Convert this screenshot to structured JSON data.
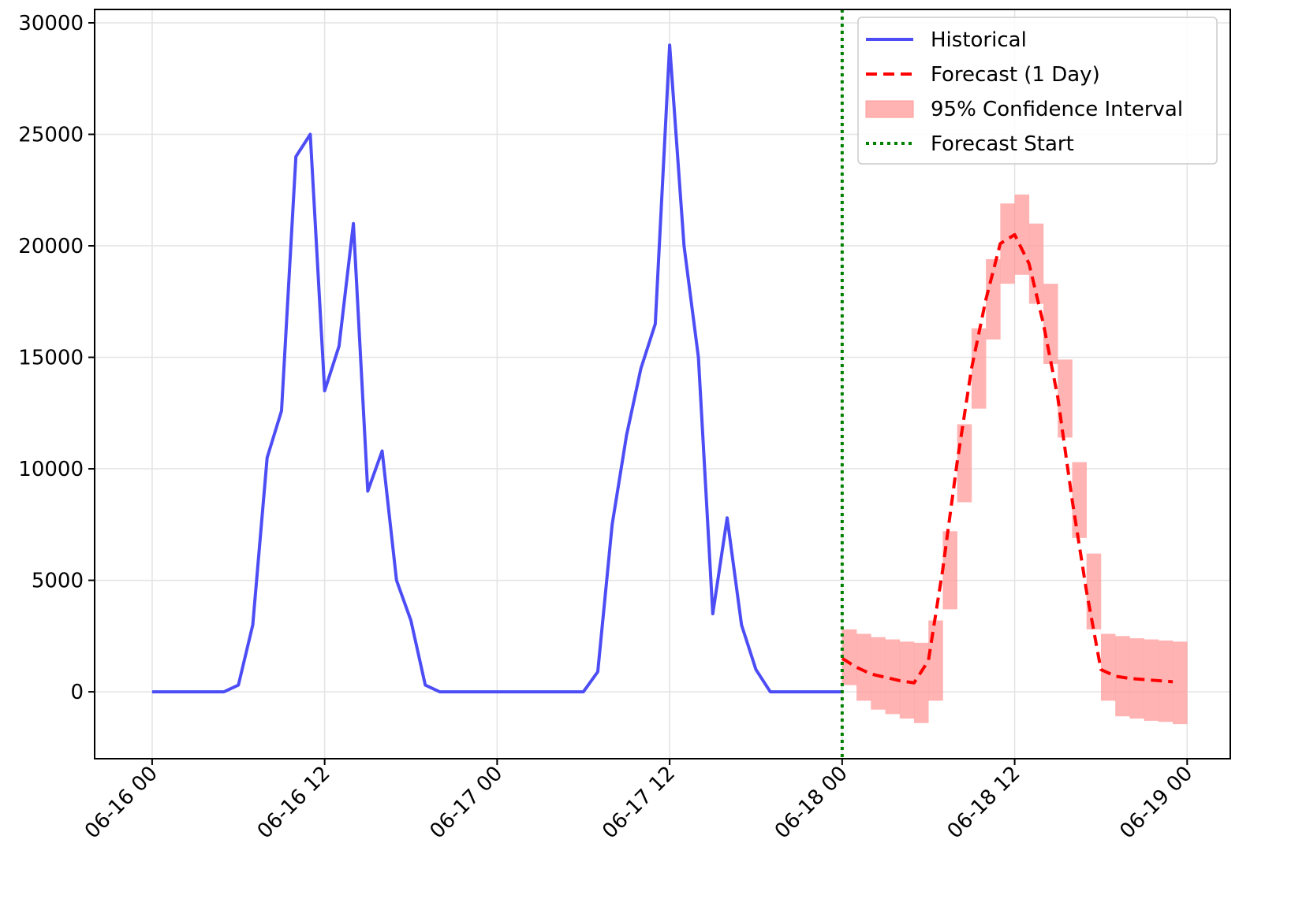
{
  "chart_data": {
    "type": "line",
    "xlim": [
      "06-15 20",
      "06-19 03"
    ],
    "xticks": [
      "06-16 00",
      "06-16 12",
      "06-17 00",
      "06-17 12",
      "06-18 00",
      "06-18 12",
      "06-19 00"
    ],
    "ylim": [
      -3000,
      30600
    ],
    "yticks": [
      0,
      5000,
      10000,
      15000,
      20000,
      25000,
      30000
    ],
    "grid": true,
    "legend": "upper right",
    "series": [
      {
        "name": "Historical",
        "color": "#4d4df5",
        "style": "solid",
        "x": [
          "06-16 00",
          "06-16 01",
          "06-16 02",
          "06-16 03",
          "06-16 04",
          "06-16 05",
          "06-16 06",
          "06-16 07",
          "06-16 08",
          "06-16 09",
          "06-16 10",
          "06-16 11",
          "06-16 12",
          "06-16 13",
          "06-16 14",
          "06-16 15",
          "06-16 16",
          "06-16 17",
          "06-16 18",
          "06-16 19",
          "06-16 20",
          "06-16 21",
          "06-16 22",
          "06-16 23",
          "06-17 00",
          "06-17 01",
          "06-17 02",
          "06-17 03",
          "06-17 04",
          "06-17 05",
          "06-17 06",
          "06-17 07",
          "06-17 08",
          "06-17 09",
          "06-17 10",
          "06-17 11",
          "06-17 12",
          "06-17 13",
          "06-17 14",
          "06-17 15",
          "06-17 16",
          "06-17 17",
          "06-17 18",
          "06-17 19",
          "06-17 20",
          "06-17 21",
          "06-17 22",
          "06-17 23",
          "06-18 00"
        ],
        "values": [
          0,
          0,
          0,
          0,
          0,
          0,
          300,
          3000,
          10500,
          12600,
          24000,
          25000,
          13500,
          15500,
          21000,
          9000,
          10800,
          5000,
          3200,
          300,
          0,
          0,
          0,
          0,
          0,
          0,
          0,
          0,
          0,
          0,
          0,
          900,
          7500,
          11500,
          14500,
          16500,
          29000,
          20000,
          15000,
          3500,
          7800,
          3000,
          1000,
          0,
          0,
          0,
          0,
          0,
          0
        ]
      },
      {
        "name": "Forecast (1 Day)",
        "color": "#ff0000",
        "style": "dashed",
        "x": [
          "06-18 00",
          "06-18 01",
          "06-18 02",
          "06-18 03",
          "06-18 04",
          "06-18 05",
          "06-18 06",
          "06-18 07",
          "06-18 08",
          "06-18 09",
          "06-18 10",
          "06-18 11",
          "06-18 12",
          "06-18 13",
          "06-18 14",
          "06-18 15",
          "06-18 16",
          "06-18 17",
          "06-18 18",
          "06-18 19",
          "06-18 20",
          "06-18 21",
          "06-18 22",
          "06-18 23"
        ],
        "values": [
          1500,
          1100,
          800,
          650,
          500,
          400,
          1400,
          5500,
          10300,
          14500,
          17600,
          20100,
          20500,
          19200,
          16500,
          13200,
          8600,
          4500,
          1000,
          700,
          600,
          550,
          500,
          450
        ]
      },
      {
        "name": "95% Confidence Interval",
        "color": "#ff9999",
        "style": "band",
        "x": [
          "06-18 00",
          "06-18 01",
          "06-18 02",
          "06-18 03",
          "06-18 04",
          "06-18 05",
          "06-18 06",
          "06-18 07",
          "06-18 08",
          "06-18 09",
          "06-18 10",
          "06-18 11",
          "06-18 12",
          "06-18 13",
          "06-18 14",
          "06-18 15",
          "06-18 16",
          "06-18 17",
          "06-18 18",
          "06-18 19",
          "06-18 20",
          "06-18 21",
          "06-18 22",
          "06-18 23"
        ],
        "lower": [
          300,
          -400,
          -800,
          -1000,
          -1200,
          -1400,
          -400,
          3700,
          8500,
          12700,
          15800,
          18300,
          18700,
          17400,
          14700,
          11400,
          6900,
          2800,
          -400,
          -1100,
          -1200,
          -1300,
          -1350,
          -1450
        ],
        "upper": [
          2800,
          2600,
          2450,
          2350,
          2250,
          2200,
          3200,
          7200,
          12000,
          16300,
          19400,
          21900,
          22300,
          21000,
          18300,
          14900,
          10300,
          6200,
          2600,
          2500,
          2400,
          2350,
          2300,
          2250
        ]
      }
    ],
    "vlines": [
      {
        "name": "Forecast Start",
        "x": "06-18 00",
        "color": "#008000"
      }
    ]
  }
}
